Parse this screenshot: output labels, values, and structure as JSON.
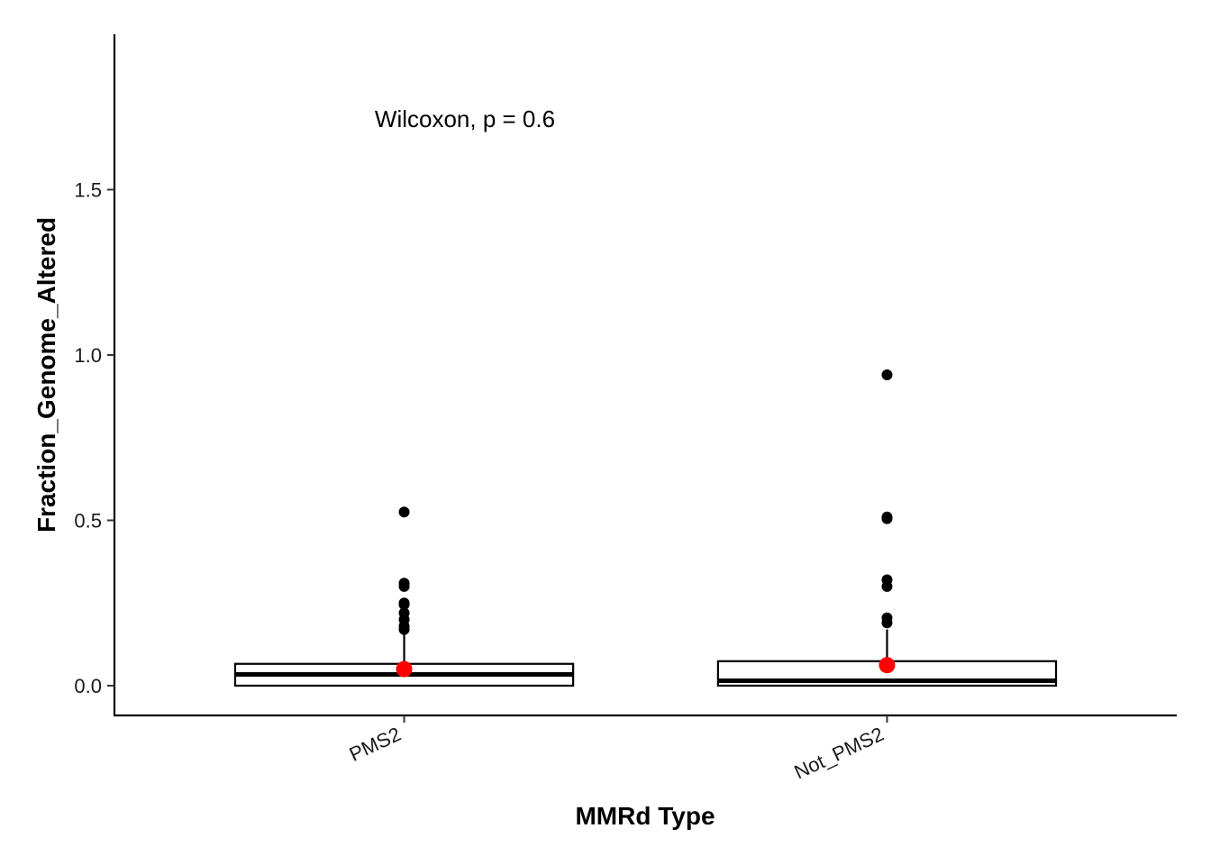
{
  "chart_data": {
    "type": "box",
    "xlabel": "MMRd Type",
    "ylabel": "Fraction_Genome_Altered",
    "annotation": "Wilcoxon, p = 0.6",
    "ylim": [
      -0.09,
      1.97
    ],
    "yticks": [
      0.0,
      0.5,
      1.0,
      1.5
    ],
    "ytick_labels": [
      "0.0",
      "0.5",
      "1.0",
      "1.5"
    ],
    "grid": false,
    "legend": "none",
    "categories": [
      "PMS2",
      "Not_PMS2"
    ],
    "boxes": [
      {
        "category": "PMS2",
        "q1": 0.0,
        "median": 0.034,
        "q3": 0.066,
        "whisker_low": 0.0,
        "whisker_high": 0.16,
        "mean": 0.05,
        "outliers": [
          0.525,
          0.31,
          0.3,
          0.25,
          0.245,
          0.22,
          0.2,
          0.18,
          0.17
        ]
      },
      {
        "category": "Not_PMS2",
        "q1": 0.0,
        "median": 0.015,
        "q3": 0.074,
        "whisker_low": 0.0,
        "whisker_high": 0.17,
        "mean": 0.062,
        "outliers": [
          0.94,
          0.51,
          0.505,
          0.32,
          0.3,
          0.205,
          0.19
        ]
      }
    ],
    "colors": {
      "box_fill": "#ffffff",
      "outline": "#000000",
      "outlier": "#000000",
      "mean_point": "#ff0000"
    }
  }
}
